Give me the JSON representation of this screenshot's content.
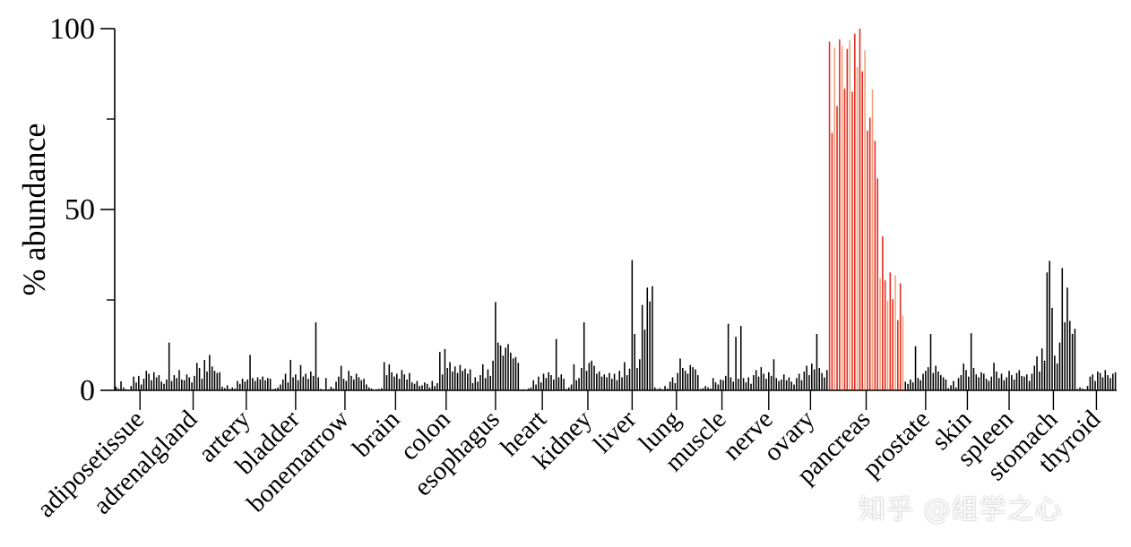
{
  "chart_data": {
    "type": "bar",
    "ylabel": "% abundance",
    "ylim": [
      0,
      100
    ],
    "yticks": [
      0,
      50,
      100
    ],
    "ytick_labels": [
      "0",
      "50",
      "100"
    ],
    "grid": false,
    "highlight_category": "pancreas",
    "colors": {
      "default_bar": "#000000",
      "highlight_bar": "#e8291c",
      "highlight_bar_light": "#f0a07a"
    },
    "categories": [
      {
        "name": "adiposetissue",
        "values": [
          1.0,
          0.5,
          2.5,
          0.8,
          0.3,
          0.2,
          1.2,
          3.8,
          2.2,
          4.0,
          1.6,
          3.2,
          5.4,
          4.6,
          2.8,
          5.0,
          3.6,
          4.2,
          2.4,
          1.8
        ]
      },
      {
        "name": "adrenalgland",
        "values": [
          3.0,
          13.2,
          2.6,
          4.2,
          3.4,
          5.6,
          3.0,
          2.8,
          4.4,
          3.6,
          2.2,
          4.0,
          7.6,
          6.2,
          3.2,
          8.4,
          5.2,
          9.8,
          6.6,
          5.4,
          4.8,
          5.0
        ]
      },
      {
        "name": "artery",
        "values": [
          1.0,
          0.6,
          1.4,
          0.4,
          0.8,
          0.5,
          2.6,
          1.8,
          3.2,
          2.4,
          3.0,
          9.8,
          3.4,
          2.6,
          3.6,
          3.0,
          3.8,
          2.8,
          3.4,
          3.2
        ]
      },
      {
        "name": "bladder",
        "values": [
          0.3,
          0.5,
          0.8,
          1.6,
          3.0,
          4.6,
          2.2,
          8.4,
          3.6,
          4.4,
          2.8,
          7.0,
          3.8,
          4.6,
          3.2,
          5.2,
          4.0,
          18.8,
          3.6
        ]
      },
      {
        "name": "bonemarrow",
        "values": [
          0.4,
          0.2,
          3.4,
          0.3,
          1.0,
          0.5,
          2.4,
          3.8,
          6.8,
          3.2,
          2.6,
          5.4,
          4.0,
          3.0,
          4.6,
          3.6,
          2.8,
          3.2,
          1.6,
          0.8
        ]
      },
      {
        "name": "brain",
        "values": [
          0.5,
          0.2,
          0.3,
          0.4,
          0.6,
          7.8,
          4.2,
          7.2,
          5.0,
          3.8,
          4.6,
          3.2,
          5.6,
          4.4,
          3.0,
          4.8,
          2.2,
          1.8,
          2.6,
          1.2
        ]
      },
      {
        "name": "colon",
        "values": [
          1.4,
          2.2,
          1.8,
          0.8,
          2.6,
          1.2,
          2.0,
          10.6,
          4.4,
          11.4,
          6.2,
          7.8,
          5.2,
          6.6,
          4.8,
          7.0,
          5.4,
          6.0,
          4.6,
          5.8
        ]
      },
      {
        "name": "esophagus",
        "values": [
          2.0,
          3.6,
          2.4,
          4.2,
          7.2,
          3.4,
          5.8,
          4.0,
          8.2,
          24.4,
          13.2,
          12.4,
          9.6,
          11.8,
          12.8,
          10.4,
          8.8,
          9.2,
          7.6
        ]
      },
      {
        "name": "heart",
        "values": [
          0.2,
          0.3,
          0.2,
          0.5,
          0.8,
          2.8,
          1.6,
          3.8,
          2.2,
          4.6,
          3.4,
          5.0,
          4.2,
          3.0,
          14.2,
          3.6,
          4.4,
          3.2
        ]
      },
      {
        "name": "kidney",
        "values": [
          0.4,
          0.8,
          1.6,
          7.2,
          2.8,
          3.4,
          6.2,
          18.8,
          5.4,
          7.6,
          8.2,
          6.8,
          4.6,
          5.2,
          3.8,
          4.4,
          3.6,
          4.8
        ]
      },
      {
        "name": "liver",
        "values": [
          3.2,
          4.6,
          2.8,
          5.4,
          3.6,
          7.8,
          4.2,
          6.0,
          36.0,
          15.6,
          6.2,
          8.6,
          23.6,
          16.8,
          28.4,
          24.6,
          28.8
        ]
      },
      {
        "name": "lung",
        "values": [
          0.8,
          0.4,
          0.6,
          0.3,
          1.2,
          0.5,
          2.4,
          3.6,
          2.0,
          4.8,
          8.8,
          6.2,
          5.4,
          4.6,
          7.0,
          6.4,
          5.8,
          4.2
        ]
      },
      {
        "name": "muscle",
        "values": [
          0.4,
          0.6,
          1.2,
          0.8,
          0.5,
          3.4,
          2.2,
          1.6,
          3.0,
          2.8,
          4.0,
          18.4,
          3.6,
          2.4,
          14.8,
          3.2,
          17.8,
          3.4
        ]
      },
      {
        "name": "nerve",
        "values": [
          2.2,
          3.6,
          1.8,
          4.2,
          5.6,
          3.8,
          6.4,
          4.6,
          3.2,
          5.0,
          4.0,
          8.6,
          3.4,
          2.6,
          3.0,
          4.4,
          2.8,
          3.6,
          2.4
        ]
      },
      {
        "name": "ovary",
        "values": [
          1.6,
          3.4,
          4.6,
          2.8,
          5.2,
          6.8,
          4.2,
          7.4,
          5.8,
          15.6,
          6.2,
          4.8,
          3.6,
          5.6
        ]
      },
      {
        "name": "pancreas",
        "values": [
          96.4,
          71.2,
          94.8,
          78.6,
          97.0,
          95.2,
          83.4,
          94.4,
          96.8,
          82.6,
          98.6,
          89.4,
          100.0,
          88.2,
          94.0,
          71.8,
          75.4,
          83.2,
          69.0,
          58.6,
          31.0,
          42.6,
          30.4,
          24.8,
          32.6,
          25.2,
          31.8,
          19.4,
          29.6,
          20.6
        ]
      },
      {
        "name": "prostate",
        "values": [
          2.4,
          1.8,
          3.0,
          2.2,
          12.2,
          3.4,
          2.8,
          4.6,
          5.4,
          6.4,
          15.6,
          4.8,
          6.8,
          5.2,
          4.2,
          3.6,
          3.0
        ]
      },
      {
        "name": "skin",
        "values": [
          0.6,
          1.4,
          2.6,
          0.8,
          3.4,
          4.2,
          7.4,
          5.6,
          3.8,
          15.8,
          6.2,
          4.4,
          3.6,
          5.0,
          4.6,
          3.2
        ]
      },
      {
        "name": "spleen",
        "values": [
          2.6,
          3.8,
          7.6,
          5.2,
          3.4,
          4.6,
          2.8,
          3.6,
          5.4,
          4.2,
          3.0,
          4.8,
          5.6,
          4.0,
          3.8,
          4.4,
          2.6
        ]
      },
      {
        "name": "stomach",
        "values": [
          4.6,
          6.8,
          9.4,
          5.2,
          11.6,
          8.2,
          32.6,
          35.8,
          22.8,
          9.6,
          7.4,
          13.2,
          33.8,
          18.8,
          28.4,
          19.2,
          15.6,
          17.0
        ]
      },
      {
        "name": "thyroid",
        "values": [
          0.4,
          0.8,
          0.5,
          0.3,
          1.2,
          3.8,
          4.4,
          2.6,
          5.2,
          4.8,
          3.6,
          5.6,
          4.2,
          3.4,
          4.6,
          5.0
        ]
      }
    ]
  },
  "watermark": "知乎 @组学之心"
}
